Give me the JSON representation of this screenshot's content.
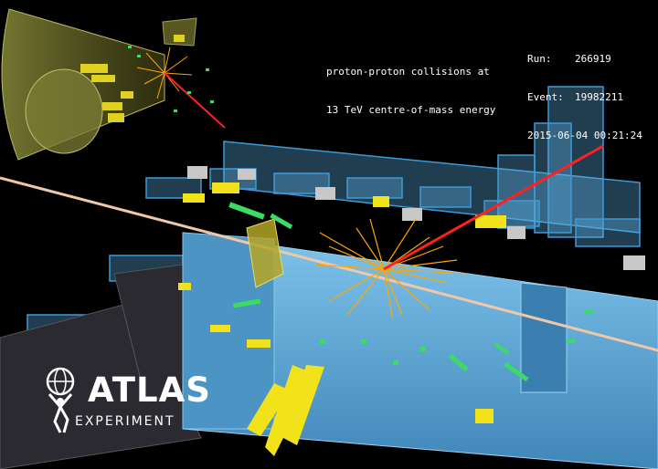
{
  "caption": {
    "line1": "proton-proton collisions at",
    "line2": "13 TeV centre-of-mass energy"
  },
  "run_info": {
    "run_label": "Run:",
    "run_value": "266919",
    "event_label": "Event:",
    "event_value": "19982211",
    "datetime": "2015-06-04 00:21:24"
  },
  "logo": {
    "name": "ATLAS",
    "subtitle": "EXPERIMENT",
    "icon": "atlas-figure-globe-icon"
  },
  "colors": {
    "background": "#000000",
    "detector_blue": "#5fb3e6",
    "detector_outline": "#2a7fc0",
    "track_orange": "#ffa500",
    "muon_red": "#ff2020",
    "calorimeter_yellow": "#f2e21a",
    "hit_green": "#3cdc64",
    "beam_pipe": "#f0c8a8"
  }
}
